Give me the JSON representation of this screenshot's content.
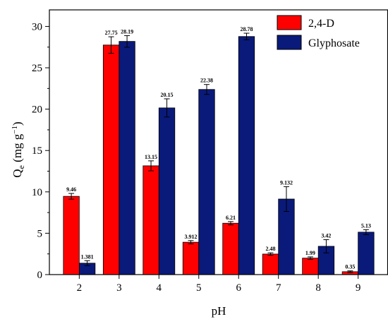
{
  "chart_data": {
    "type": "bar",
    "xlabel": "pH",
    "ylabel": {
      "base": "Q",
      "sub": "e",
      "rest": " (mg g",
      "sup": "−1",
      "end": ")"
    },
    "categories": [
      "2",
      "3",
      "4",
      "5",
      "6",
      "7",
      "8",
      "9"
    ],
    "ylim": [
      0,
      32
    ],
    "yticks": [
      0,
      5,
      10,
      15,
      20,
      25,
      30
    ],
    "grid": false,
    "legend_position": "top-right",
    "series": [
      {
        "name": "2,4-D",
        "color": "#ff0000",
        "values": [
          9.46,
          27.75,
          13.15,
          3.912,
          6.21,
          2.48,
          1.99,
          0.35
        ],
        "labels": [
          "9.46",
          "27.75",
          "13.15",
          "3.912",
          "6.21",
          "2.48",
          "1.99",
          "0.35"
        ],
        "errors": [
          0.35,
          1.0,
          0.6,
          0.2,
          0.2,
          0.15,
          0.15,
          0.1
        ]
      },
      {
        "name": "Glyphosate",
        "color": "#0a1a7a",
        "values": [
          1.381,
          28.19,
          20.15,
          22.38,
          28.78,
          9.132,
          3.42,
          5.13
        ],
        "labels": [
          "1.381",
          "28.19",
          "20.15",
          "22.38",
          "28.78",
          "9.132",
          "3.42",
          "5.13"
        ],
        "errors": [
          0.3,
          0.7,
          1.1,
          0.6,
          0.4,
          1.5,
          0.8,
          0.3
        ]
      }
    ]
  }
}
